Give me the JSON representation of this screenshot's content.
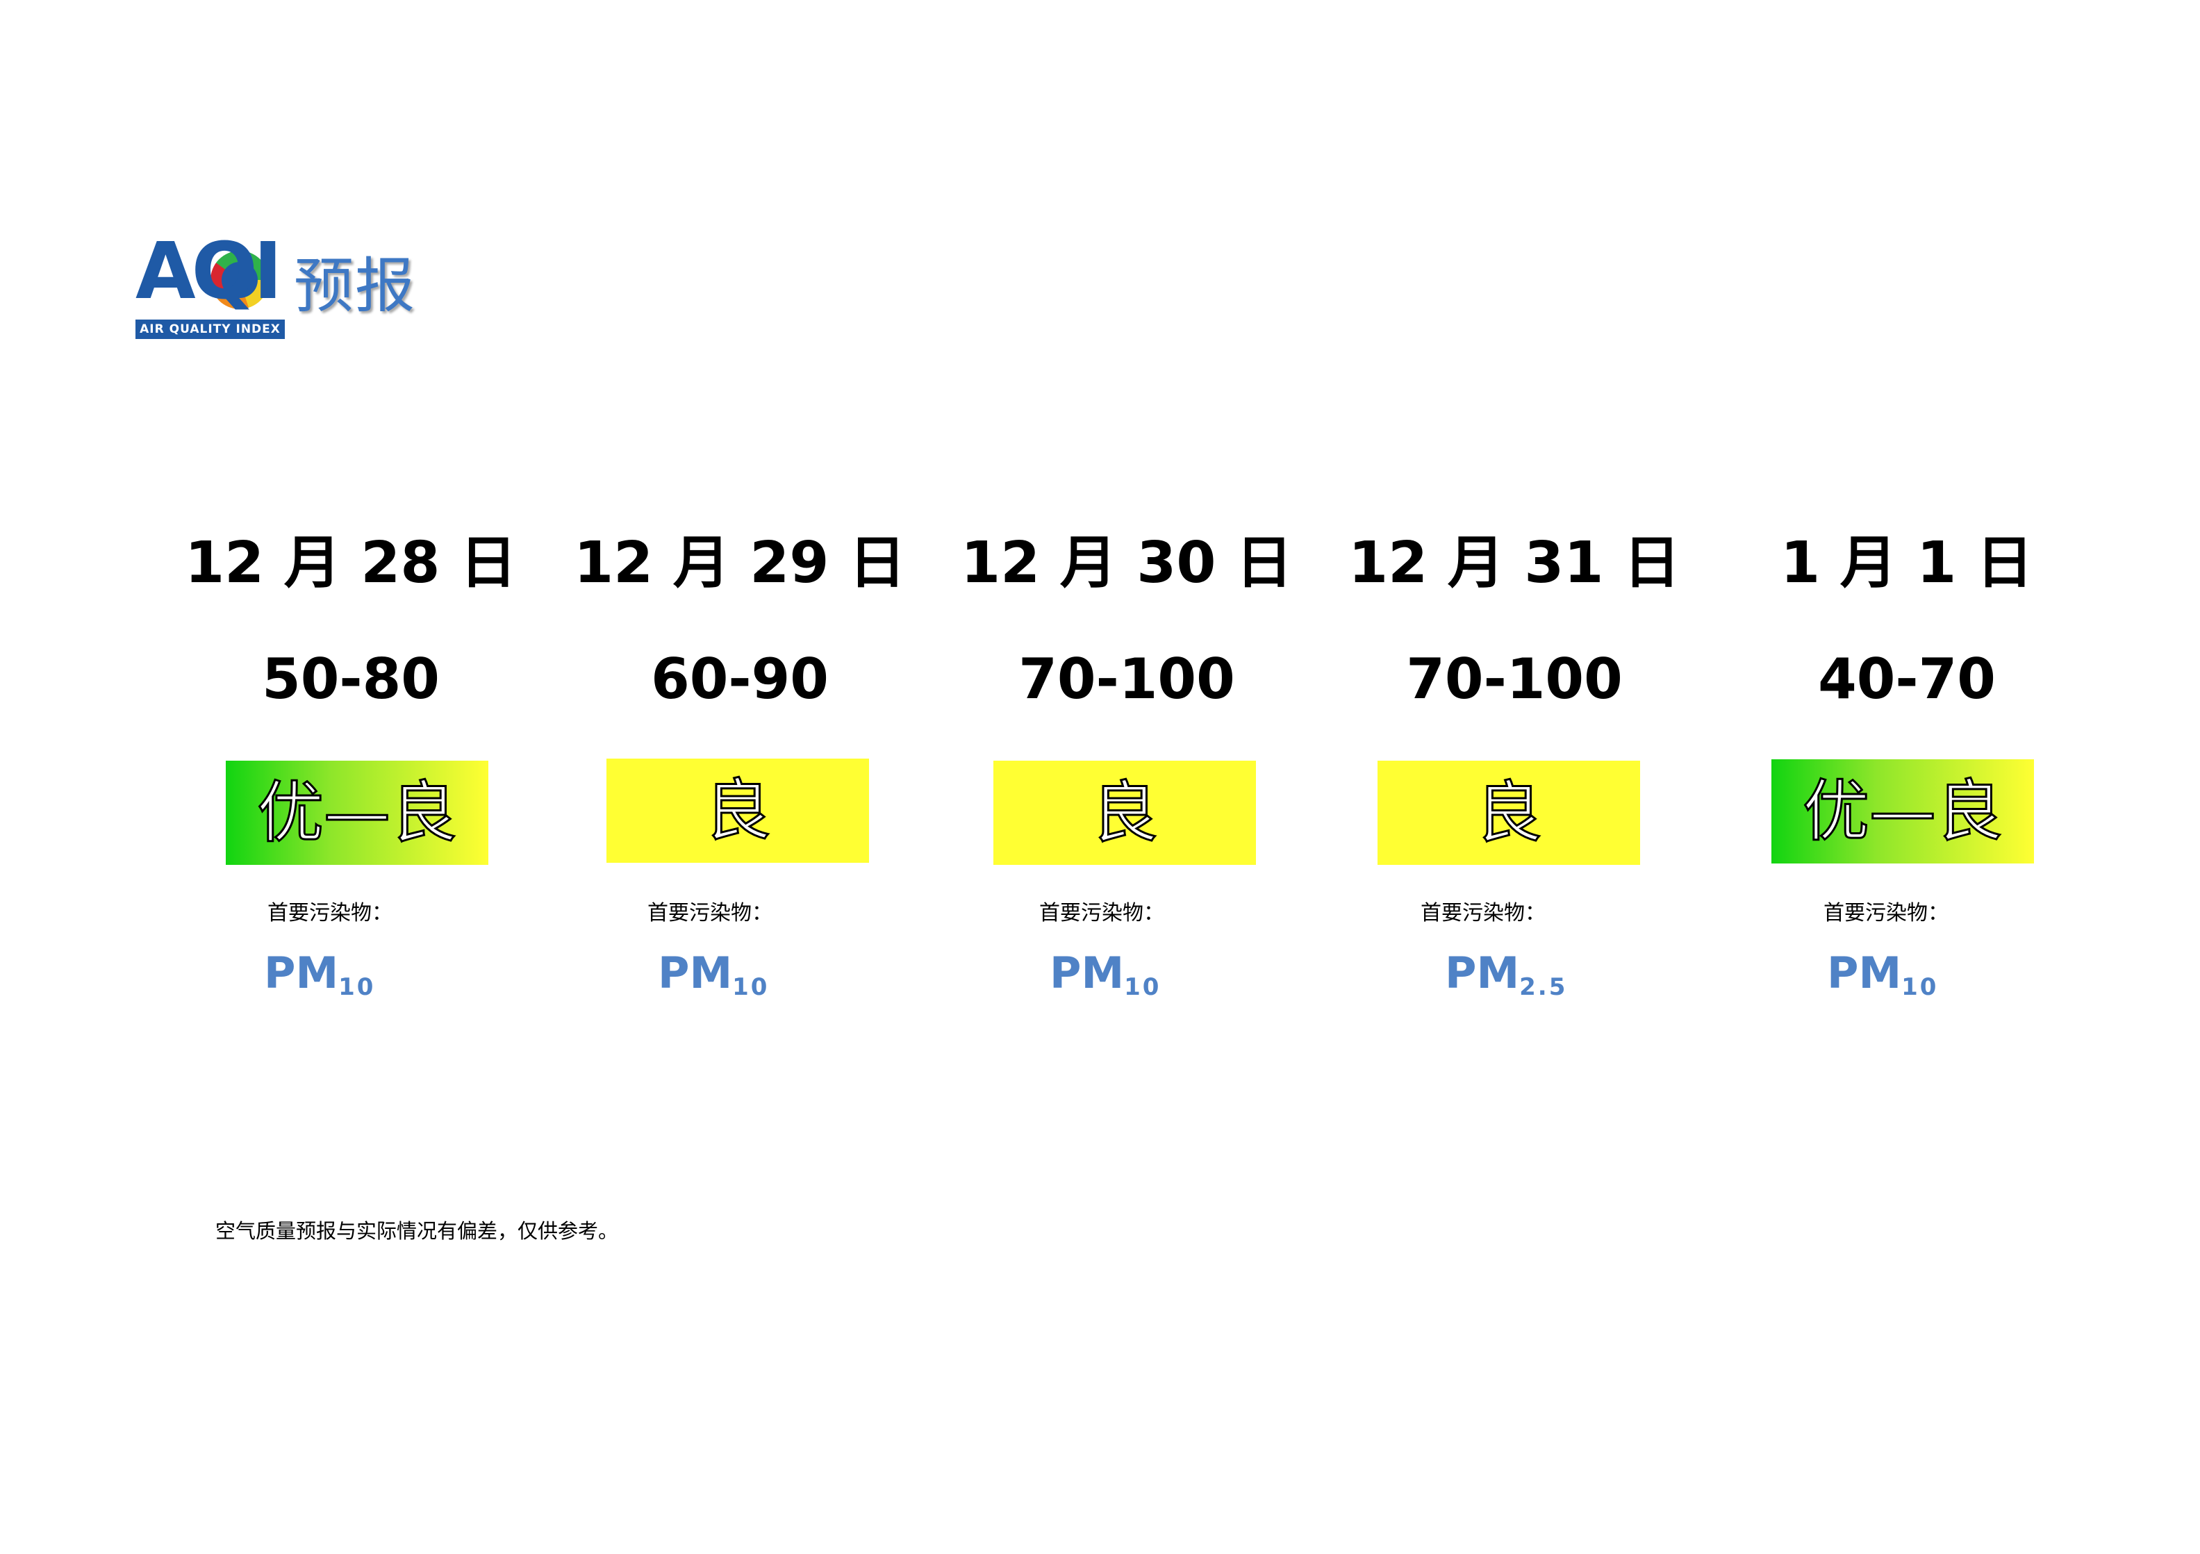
{
  "logo": {
    "brand": "AQI",
    "subtitle": "AIR QUALITY INDEX",
    "title": "预报",
    "colors": {
      "brand_blue": "#1f5aa6",
      "title_blue": "#3e78c4"
    }
  },
  "pollutant_label": "首要污染物：",
  "days": [
    {
      "date": "12 月 28 日",
      "aqi_range": "50-80",
      "level": "优—良",
      "level_style": "gradient",
      "pollutant_main": "PM",
      "pollutant_sub": "10"
    },
    {
      "date": "12 月 29 日",
      "aqi_range": "60-90",
      "level": "良",
      "level_style": "yellow",
      "pollutant_main": "PM",
      "pollutant_sub": "10"
    },
    {
      "date": "12 月 30 日",
      "aqi_range": "70-100",
      "level": "良",
      "level_style": "yellow",
      "pollutant_main": "PM",
      "pollutant_sub": "10"
    },
    {
      "date": "12 月 31 日",
      "aqi_range": "70-100",
      "level": "良",
      "level_style": "yellow",
      "pollutant_main": "PM",
      "pollutant_sub": "2.5"
    },
    {
      "date": "1 月 1 日",
      "aqi_range": "40-70",
      "level": "优—良",
      "level_style": "gradient",
      "pollutant_main": "PM",
      "pollutant_sub": "10"
    }
  ],
  "level_colors": {
    "good": "#ffff33",
    "excellent": "#11d411"
  },
  "pollutant_color": "#4f82c6",
  "footnote": "空气质量预报与实际情况有偏差，仅供参考。"
}
